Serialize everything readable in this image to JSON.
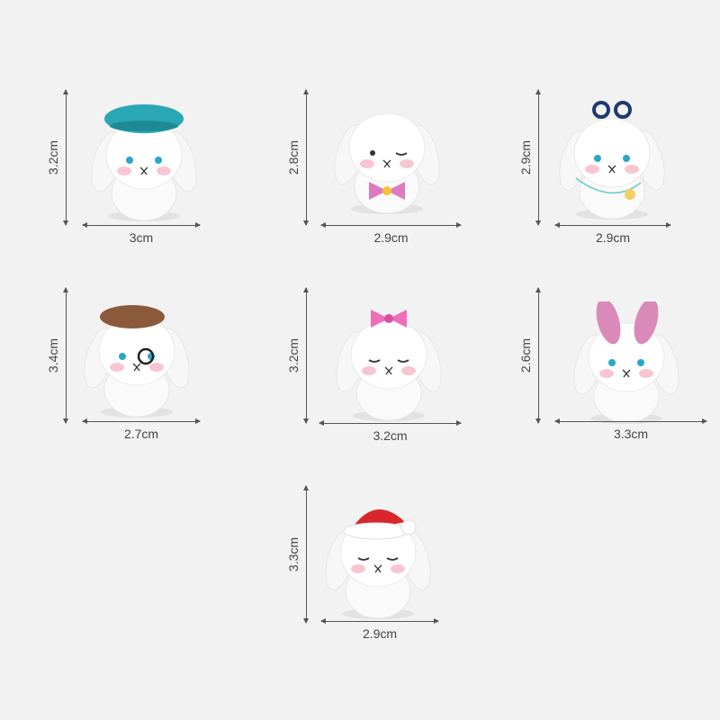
{
  "background_color": "#f2f2f2",
  "figurines": [
    {
      "height": "3.2cm",
      "width": "3cm",
      "accessory": "teal-beret",
      "accessory_color": "#2aa7b5",
      "eyes": "open-blue"
    },
    {
      "height": "2.8cm",
      "width": "2.9cm",
      "accessory": "pink-bow-tie",
      "accessory_color": "#e07ac0",
      "eyes": "wink"
    },
    {
      "height": "2.9cm",
      "width": "2.9cm",
      "accessory": "navy-sunglasses",
      "accessory_color": "#1f3a6e",
      "eyes": "open-blue"
    },
    {
      "height": "3.4cm",
      "width": "2.7cm",
      "accessory": "brown-beret-monocle",
      "accessory_color": "#8a5a3a",
      "eyes": "monocle"
    },
    {
      "height": "3.2cm",
      "width": "3.2cm",
      "accessory": "pink-hair-bow",
      "accessory_color": "#ee6fb8",
      "eyes": "closed"
    },
    {
      "height": "2.6cm",
      "width": "3.3cm",
      "accessory": "pink-bunny-ears-headband",
      "accessory_color": "#d98ab8",
      "eyes": "open-blue"
    },
    {
      "height": "3.3cm",
      "width": "2.9cm",
      "accessory": "red-santa-hat",
      "accessory_color": "#d8262c",
      "eyes": "closed"
    }
  ]
}
